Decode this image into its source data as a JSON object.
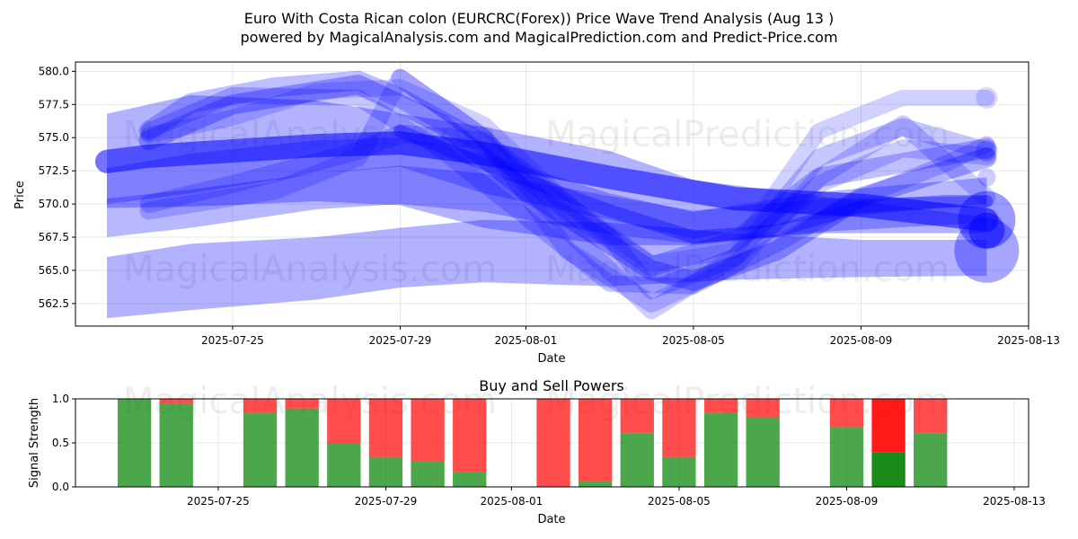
{
  "title_line1": "Euro With Costa Rican colon (EURCRC(Forex)) Price Wave Trend Analysis (Aug 13 )",
  "title_line2": "powered by MagicalAnalysis.com and MagicalPrediction.com and Predict-Price.com",
  "watermarks": [
    "MagicalAnalysis.com",
    "MagicalPrediction.com"
  ],
  "colors": {
    "wave": "#0000ff",
    "buy": "#008000",
    "sell": "#ff0000"
  },
  "chart_data": [
    {
      "type": "line",
      "name": "price-wave",
      "xlabel": "Date",
      "ylabel": "Price",
      "xlim": [
        "2025-07-21T06:00",
        "2025-08-13"
      ],
      "ylim": [
        560.8,
        580.7
      ],
      "x_ticks": [
        "2025-07-25",
        "2025-07-29",
        "2025-08-01",
        "2025-08-05",
        "2025-08-09",
        "2025-08-13"
      ],
      "y_ticks": [
        "562.5",
        "565.0",
        "567.5",
        "570.0",
        "572.5",
        "575.0",
        "577.5",
        "580.0"
      ],
      "grid": true,
      "bands": [
        {
          "x": [
            "2025-07-22",
            "2025-07-24",
            "2025-07-27",
            "2025-07-29",
            "2025-07-31",
            "2025-08-03",
            "2025-08-06",
            "2025-08-09",
            "2025-08-12"
          ],
          "lower": [
            561.4,
            562.0,
            562.8,
            563.7,
            564.1,
            563.8,
            564.3,
            564.5,
            564.6
          ],
          "upper": [
            566.0,
            567.0,
            567.5,
            568.2,
            568.8,
            568.6,
            567.8,
            567.3,
            567.3
          ],
          "opacity": 0.3
        },
        {
          "x": [
            "2025-07-22",
            "2025-07-24",
            "2025-07-27",
            "2025-07-29",
            "2025-07-31",
            "2025-08-03",
            "2025-08-05",
            "2025-08-08",
            "2025-08-12"
          ],
          "lower": [
            569.7,
            569.8,
            570.2,
            569.9,
            568.2,
            566.9,
            566.9,
            567.8,
            567.8
          ],
          "upper": [
            576.8,
            578.2,
            577.8,
            576.8,
            575.8,
            574.0,
            571.8,
            570.6,
            569.0
          ],
          "opacity": 0.3
        },
        {
          "x": [
            "2025-07-22",
            "2025-07-24",
            "2025-07-27",
            "2025-07-29",
            "2025-07-31",
            "2025-08-03",
            "2025-08-05",
            "2025-08-08",
            "2025-08-12"
          ],
          "lower": [
            570.0,
            570.8,
            572.3,
            572.8,
            570.8,
            568.8,
            567.4,
            568.9,
            570.0
          ],
          "upper": [
            572.7,
            573.8,
            574.8,
            575.0,
            573.8,
            570.8,
            569.4,
            570.9,
            572.0
          ],
          "opacity": 0.28
        },
        {
          "x": [
            "2025-07-22",
            "2025-07-24",
            "2025-07-27",
            "2025-07-29",
            "2025-07-31",
            "2025-08-03",
            "2025-08-05",
            "2025-08-08",
            "2025-08-12"
          ],
          "lower": [
            567.5,
            568.2,
            569.6,
            570.0,
            569.4,
            567.7,
            567.0,
            567.9,
            568.6
          ],
          "upper": [
            570.4,
            571.1,
            572.3,
            572.9,
            572.3,
            570.6,
            569.5,
            570.4,
            570.6
          ],
          "opacity": 0.28
        }
      ],
      "strokes": [
        {
          "x": [
            "2025-07-22",
            "2025-07-23",
            "2025-07-25",
            "2025-07-27",
            "2025-07-29",
            "2025-07-31",
            "2025-08-03",
            "2025-08-06",
            "2025-08-09",
            "2025-08-12"
          ],
          "y": [
            573.2,
            573.6,
            574.0,
            574.4,
            574.6,
            573.8,
            572.0,
            570.4,
            569.9,
            568.8
          ],
          "width": 26,
          "opacity": 0.55
        },
        {
          "x": [
            "2025-07-23",
            "2025-07-25",
            "2025-07-27",
            "2025-07-28",
            "2025-07-30",
            "2025-08-01",
            "2025-08-04",
            "2025-08-05",
            "2025-08-07",
            "2025-08-09",
            "2025-08-12"
          ],
          "y": [
            574.8,
            577.5,
            578.5,
            579.0,
            576.0,
            571.0,
            565.0,
            564.2,
            566.5,
            570.5,
            573.5
          ],
          "width": 22,
          "opacity": 0.3
        },
        {
          "x": [
            "2025-07-23",
            "2025-07-24",
            "2025-07-26",
            "2025-07-28",
            "2025-07-29",
            "2025-07-31",
            "2025-08-02",
            "2025-08-04",
            "2025-08-06",
            "2025-08-08",
            "2025-08-12"
          ],
          "y": [
            575.5,
            577.6,
            578.8,
            579.3,
            578.0,
            574.5,
            569.5,
            565.3,
            567.2,
            572.0,
            574.2
          ],
          "width": 22,
          "opacity": 0.25
        },
        {
          "x": [
            "2025-07-23",
            "2025-07-25",
            "2025-07-28",
            "2025-07-29",
            "2025-07-31",
            "2025-08-03",
            "2025-08-04",
            "2025-08-06",
            "2025-08-08",
            "2025-08-10",
            "2025-08-12"
          ],
          "y": [
            570.0,
            571.5,
            574.0,
            575.3,
            574.8,
            567.5,
            563.5,
            566.0,
            573.5,
            575.8,
            574.0
          ],
          "width": 20,
          "opacity": 0.22
        },
        {
          "x": [
            "2025-07-23",
            "2025-07-26",
            "2025-07-28",
            "2025-07-29",
            "2025-07-31",
            "2025-08-02",
            "2025-08-04",
            "2025-08-06",
            "2025-08-08",
            "2025-08-10",
            "2025-08-12"
          ],
          "y": [
            569.5,
            571.0,
            573.5,
            579.5,
            575.0,
            566.5,
            562.5,
            565.5,
            572.0,
            576.0,
            570.5
          ],
          "width": 20,
          "opacity": 0.2
        },
        {
          "x": [
            "2025-07-23",
            "2025-07-25",
            "2025-07-27",
            "2025-07-29",
            "2025-07-31",
            "2025-08-02",
            "2025-08-04",
            "2025-08-06",
            "2025-08-08",
            "2025-08-10",
            "2025-08-12"
          ],
          "y": [
            575.2,
            576.5,
            578.5,
            578.8,
            576.0,
            570.0,
            565.5,
            566.5,
            575.5,
            578.0,
            578.0
          ],
          "width": 18,
          "opacity": 0.18
        },
        {
          "x": [
            "2025-07-23",
            "2025-07-25",
            "2025-07-28",
            "2025-07-30",
            "2025-08-01",
            "2025-08-03",
            "2025-08-05",
            "2025-08-07",
            "2025-08-09",
            "2025-08-11",
            "2025-08-12"
          ],
          "y": [
            575.5,
            578.2,
            578.0,
            574.0,
            569.0,
            564.0,
            563.8,
            567.0,
            570.5,
            573.0,
            574.5
          ],
          "width": 18,
          "opacity": 0.22
        },
        {
          "x": [
            "2025-07-29",
            "2025-07-31",
            "2025-08-02",
            "2025-08-04",
            "2025-08-06",
            "2025-08-08",
            "2025-08-10",
            "2025-08-12"
          ],
          "y": [
            579.5,
            575.0,
            568.0,
            562.0,
            566.0,
            571.5,
            574.2,
            573.6
          ],
          "width": 20,
          "opacity": 0.2
        },
        {
          "x": [
            "2025-07-29",
            "2025-07-31",
            "2025-08-03",
            "2025-08-05",
            "2025-08-07",
            "2025-08-09",
            "2025-08-11",
            "2025-08-12"
          ],
          "y": [
            575.5,
            573.0,
            569.5,
            567.5,
            568.0,
            569.8,
            570.2,
            570.2
          ],
          "width": 14,
          "opacity": 0.35
        }
      ],
      "end_markers": [
        {
          "x": "2025-08-12",
          "y": 568.8,
          "r": 32,
          "opacity": 0.4
        },
        {
          "x": "2025-08-12",
          "y": 566.5,
          "r": 36,
          "opacity": 0.35
        },
        {
          "x": "2025-08-12",
          "y": 568.0,
          "r": 20,
          "opacity": 0.5
        },
        {
          "x": "2025-08-12",
          "y": 574.0,
          "r": 12,
          "opacity": 0.2
        },
        {
          "x": "2025-08-12",
          "y": 578.0,
          "r": 12,
          "opacity": 0.15
        },
        {
          "x": "2025-08-12",
          "y": 572.0,
          "r": 10,
          "opacity": 0.2
        }
      ]
    },
    {
      "type": "bar",
      "name": "buy-sell-powers",
      "title": "Buy and Sell Powers",
      "xlabel": "Date",
      "ylabel": "Signal Strength",
      "ylim": [
        0,
        1.0
      ],
      "y_ticks": [
        "0.0",
        "0.5",
        "1.0"
      ],
      "x_ticks": [
        "2025-07-25",
        "2025-07-29",
        "2025-08-01",
        "2025-08-05",
        "2025-08-09",
        "2025-08-13"
      ],
      "grid": true,
      "bars": [
        {
          "date": "2025-07-23",
          "buy": 1.0,
          "sell": 0.0
        },
        {
          "date": "2025-07-24",
          "buy": 0.95,
          "sell": 0.05
        },
        {
          "date": "2025-07-26",
          "buy": 0.84,
          "sell": 0.16
        },
        {
          "date": "2025-07-27",
          "buy": 0.89,
          "sell": 0.11
        },
        {
          "date": "2025-07-28",
          "buy": 0.5,
          "sell": 0.5
        },
        {
          "date": "2025-07-29",
          "buy": 0.34,
          "sell": 0.66
        },
        {
          "date": "2025-07-30",
          "buy": 0.29,
          "sell": 0.71
        },
        {
          "date": "2025-07-31",
          "buy": 0.17,
          "sell": 0.83
        },
        {
          "date": "2025-08-02",
          "buy": 0.0,
          "sell": 1.0
        },
        {
          "date": "2025-08-03",
          "buy": 0.06,
          "sell": 0.94
        },
        {
          "date": "2025-08-04",
          "buy": 0.61,
          "sell": 0.39
        },
        {
          "date": "2025-08-05",
          "buy": 0.34,
          "sell": 0.66
        },
        {
          "date": "2025-08-06",
          "buy": 0.84,
          "sell": 0.16
        },
        {
          "date": "2025-08-07",
          "buy": 0.79,
          "sell": 0.21
        },
        {
          "date": "2025-08-09",
          "buy": 0.68,
          "sell": 0.32
        },
        {
          "date": "2025-08-10",
          "buy": 0.39,
          "sell": 0.61,
          "highlight": true
        },
        {
          "date": "2025-08-11",
          "buy": 0.61,
          "sell": 0.39
        }
      ]
    }
  ]
}
